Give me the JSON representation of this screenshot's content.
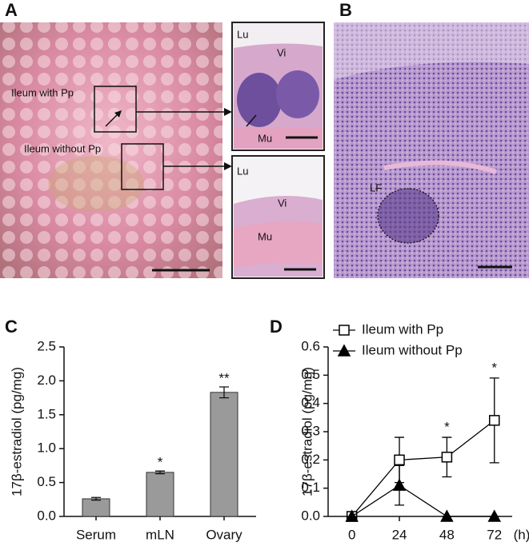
{
  "figure": {
    "letters": [
      "A",
      "B",
      "C",
      "D"
    ],
    "panel_a": {
      "regions": [
        "Ileum with Pp",
        "Ileum without Pp"
      ],
      "inset_with_pp": [
        "Lu",
        "Vi",
        "Mu"
      ],
      "inset_without_pp": [
        "Lu",
        "Vi",
        "Mu"
      ]
    },
    "panel_b": {
      "regions": [
        "LF"
      ]
    }
  },
  "chart_data": [
    {
      "type": "bar",
      "ylabel": "17β-estradiol (pg/mg)",
      "categories": [
        "Serum",
        "mLN",
        "Ovary"
      ],
      "values": [
        0.26,
        0.65,
        1.83
      ],
      "errors": [
        0.02,
        0.02,
        0.08
      ],
      "significance": [
        null,
        "*",
        "**"
      ],
      "color": "#9a9a9a",
      "ylim": [
        0,
        2.5
      ],
      "yticks": [
        {
          "value": 0,
          "label": "0.0"
        },
        0.5,
        {
          "value": 1,
          "label": "1.0"
        },
        1.5,
        {
          "value": 2,
          "label": "2.0"
        },
        2.5
      ]
    },
    {
      "type": "line",
      "ylabel": "17β-estradiol (pg/mg)",
      "xlabel": "(h)",
      "x": [
        0,
        24,
        48,
        72
      ],
      "xlim": [
        -12,
        81
      ],
      "xticks": [
        0,
        24,
        48,
        72
      ],
      "ylim": [
        0,
        0.6
      ],
      "yticks": [
        {
          "value": 0,
          "label": "0.0"
        },
        0.1,
        0.2,
        0.3,
        0.4,
        0.5,
        0.6
      ],
      "legend": "upper left",
      "series": [
        {
          "name": "Ileum with Pp",
          "color": "#000000",
          "marker": "square",
          "filled": false,
          "values": [
            0,
            0.2,
            0.21,
            0.34
          ],
          "errors": [
            0,
            0.08,
            0.07,
            0.15
          ],
          "significance": [
            null,
            null,
            "*",
            "*"
          ]
        },
        {
          "name": "Ileum without Pp",
          "color": "#000000",
          "marker": "triangle",
          "filled": true,
          "values": [
            0,
            0.11,
            0,
            0
          ],
          "errors": [
            0,
            0.07,
            0,
            0
          ],
          "significance": [
            null,
            null,
            null,
            null
          ]
        }
      ]
    }
  ]
}
